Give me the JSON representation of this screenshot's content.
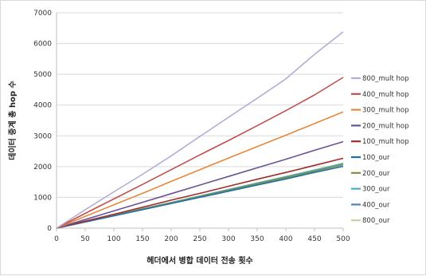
{
  "chart_data": {
    "type": "line",
    "title": "",
    "xlabel": "헤더에서 병합 데이터 전송 횟수",
    "ylabel": "데이터 중계 총 hop 수",
    "xlim": [
      0,
      500
    ],
    "ylim": [
      0,
      7000
    ],
    "x_ticks": [
      0,
      50,
      100,
      150,
      200,
      250,
      300,
      350,
      400,
      450,
      500
    ],
    "y_ticks": [
      0,
      1000,
      2000,
      3000,
      4000,
      5000,
      6000,
      7000
    ],
    "grid": "horizontal",
    "legend_position": "right",
    "x": [
      0,
      50,
      100,
      150,
      200,
      250,
      300,
      350,
      400,
      450,
      500
    ],
    "series": [
      {
        "name": "800_mult hop",
        "color": "#b3aed3",
        "values": [
          0,
          600,
          1180,
          1750,
          2350,
          2980,
          3600,
          4220,
          4850,
          5650,
          6380
        ]
      },
      {
        "name": "400_mult hop",
        "color": "#c0504d",
        "values": [
          0,
          480,
          950,
          1420,
          1900,
          2380,
          2850,
          3330,
          3820,
          4330,
          4900
        ]
      },
      {
        "name": "300_mult hop",
        "color": "#e8883a",
        "values": [
          0,
          380,
          760,
          1130,
          1520,
          1900,
          2280,
          2650,
          3020,
          3400,
          3780
        ]
      },
      {
        "name": "200_mult hop",
        "color": "#6a5297",
        "values": [
          0,
          280,
          560,
          840,
          1120,
          1400,
          1680,
          1960,
          2240,
          2530,
          2810
        ]
      },
      {
        "name": "100_mult hop",
        "color": "#a02c2c",
        "values": [
          0,
          225,
          450,
          680,
          910,
          1130,
          1360,
          1590,
          1810,
          2040,
          2270
        ]
      },
      {
        "name": "100_our",
        "color": "#1f6fa8",
        "values": [
          0,
          200,
          400,
          600,
          800,
          1000,
          1200,
          1400,
          1600,
          1810,
          2010
        ]
      },
      {
        "name": "200_our",
        "color": "#77933c",
        "values": [
          0,
          205,
          410,
          615,
          820,
          1025,
          1230,
          1435,
          1640,
          1850,
          2060
        ]
      },
      {
        "name": "300_our",
        "color": "#4bacc6",
        "values": [
          0,
          208,
          415,
          620,
          825,
          1030,
          1240,
          1450,
          1660,
          1870,
          2090
        ]
      },
      {
        "name": "400_our",
        "color": "#4f81bd",
        "values": [
          0,
          210,
          420,
          625,
          830,
          1040,
          1250,
          1460,
          1670,
          1880,
          2100
        ]
      },
      {
        "name": "800_our",
        "color": "#c3d69b",
        "values": [
          0,
          212,
          425,
          630,
          840,
          1050,
          1260,
          1470,
          1680,
          1895,
          2110
        ]
      }
    ]
  }
}
